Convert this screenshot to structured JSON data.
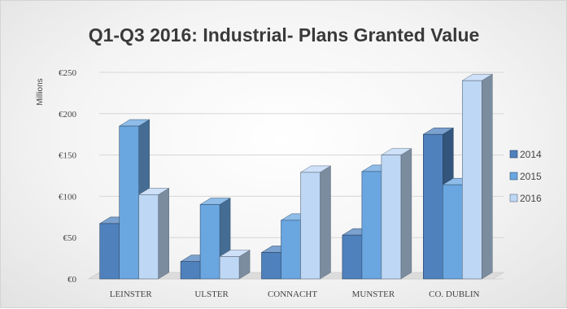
{
  "chart_data": {
    "type": "bar",
    "title": "Q1-Q3 2016: Industrial- Plans Granted Value",
    "ylabel": "Millions",
    "xlabel": "",
    "categories": [
      "LEINSTER",
      "ULSTER",
      "CONNACHT",
      "MUNSTER",
      "CO. DUBLIN"
    ],
    "series": [
      {
        "name": "2014",
        "values": [
          67,
          21,
          32,
          53,
          175
        ],
        "color": "#4f81bd"
      },
      {
        "name": "2015",
        "values": [
          185,
          90,
          71,
          130,
          114
        ],
        "color": "#6aa6e0"
      },
      {
        "name": "2016",
        "values": [
          102,
          27,
          129,
          150,
          240
        ],
        "color": "#bdd7f5"
      }
    ],
    "ylim": [
      0,
      250
    ],
    "yticks": [
      0,
      50,
      100,
      150,
      200,
      250
    ],
    "ytick_labels": [
      "€0",
      "€50",
      "€100",
      "€150",
      "€200",
      "€250"
    ],
    "grid": true,
    "legend_position": "right",
    "three_d": true
  }
}
